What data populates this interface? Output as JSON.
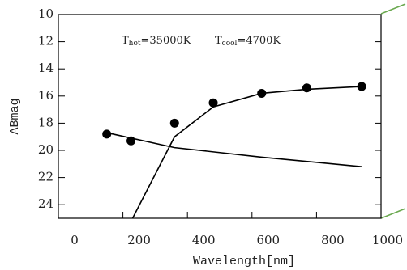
{
  "chart_data": {
    "type": "line",
    "annotation": [
      {
        "symbol": "T",
        "sub": "hot",
        "text": "=35000K"
      },
      {
        "symbol": "T",
        "sub": "cool",
        "text": "=4700K"
      }
    ],
    "x_label": "Wavelength[nm]",
    "y_label": "ABmag",
    "xlim": [
      0,
      1000
    ],
    "ylim": [
      10,
      25
    ],
    "y_inverted": true,
    "xticks": [
      0,
      200,
      400,
      600,
      800,
      1000
    ],
    "yticks": [
      10,
      12,
      14,
      16,
      18,
      20,
      22,
      24
    ],
    "points": {
      "x": [
        150,
        225,
        360,
        480,
        630,
        770,
        940
      ],
      "values": [
        18.8,
        19.3,
        18.0,
        16.5,
        15.8,
        15.4,
        15.3
      ],
      "color": "#000000"
    },
    "series": [
      {
        "color": "#000000",
        "x": [
          150,
          360,
          630,
          940
        ],
        "values": [
          18.7,
          19.8,
          20.5,
          21.2
        ]
      },
      {
        "color": "#000000",
        "x": [
          230,
          360,
          480,
          630,
          770,
          940
        ],
        "values": [
          25.0,
          19.0,
          16.8,
          15.8,
          15.5,
          15.3
        ]
      }
    ]
  }
}
